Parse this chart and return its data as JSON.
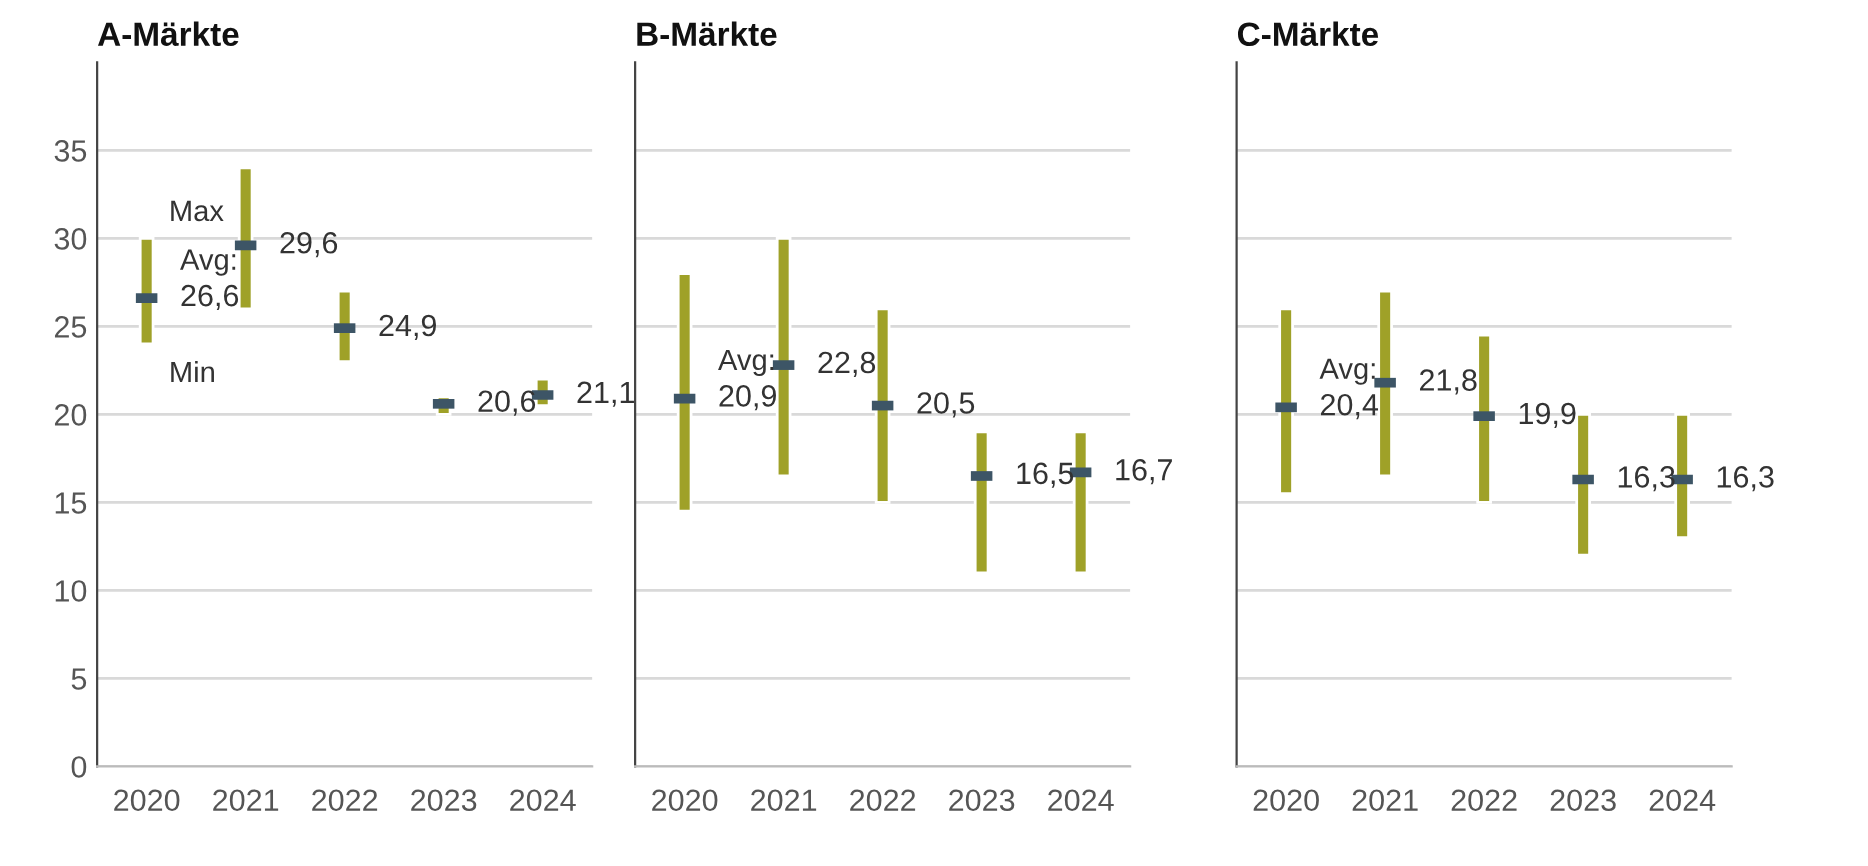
{
  "chart_data": [
    {
      "type": "bar",
      "title": "A-Märkte",
      "categories": [
        "2020",
        "2021",
        "2022",
        "2023",
        "2024"
      ],
      "series": [
        {
          "type": "bar",
          "color": "#9fa128",
          "base": [
            24,
            26,
            23,
            20,
            20.5
          ],
          "values": [
            6,
            8,
            4,
            1,
            1.5
          ]
        },
        {
          "type": "scatter",
          "color": "#3d5566",
          "values": [
            26.6,
            29.6,
            24.9,
            20.6,
            21.1
          ],
          "value_labels": [
            "26,6",
            "29,6",
            "24,9",
            "20,6",
            "21,1"
          ]
        }
      ],
      "ylim": [
        0,
        40
      ],
      "yticks": [
        0,
        5,
        10,
        15,
        20,
        25,
        30,
        35
      ],
      "grid": "y",
      "annotations": [
        {
          "text": "Max",
          "x": "2020",
          "y": 30
        },
        {
          "text": "Avg:",
          "x": "2020",
          "y": 26.6
        },
        {
          "text": "Min",
          "x": "2020",
          "y": 24
        }
      ]
    },
    {
      "type": "bar",
      "title": "B-Märkte",
      "categories": [
        "2020",
        "2021",
        "2022",
        "2023",
        "2024"
      ],
      "series": [
        {
          "type": "bar",
          "color": "#9fa128",
          "base": [
            14.5,
            16.5,
            15,
            11,
            11
          ],
          "values": [
            13.5,
            13.5,
            11,
            8,
            8
          ]
        },
        {
          "type": "scatter",
          "color": "#3d5566",
          "values": [
            20.9,
            22.8,
            20.5,
            16.5,
            16.7
          ],
          "value_labels": [
            "20,9",
            "22,8",
            "20,5",
            "16,5",
            "16,7"
          ]
        }
      ],
      "ylim": [
        0,
        40
      ],
      "yticks": [
        0,
        5,
        10,
        15,
        20,
        25,
        30,
        35
      ],
      "grid": "y",
      "tick_labels": "x",
      "annotations": [
        {
          "text": "Avg:",
          "x": "2020",
          "y": 20.9
        }
      ]
    },
    {
      "type": "bar",
      "title": "C-Märkte",
      "categories": [
        "2020",
        "2021",
        "2022",
        "2023",
        "2024"
      ],
      "series": [
        {
          "type": "bar",
          "color": "#9fa128",
          "base": [
            15.5,
            16.5,
            15,
            12,
            13
          ],
          "values": [
            10.5,
            10.5,
            9.5,
            8,
            7
          ]
        },
        {
          "type": "scatter",
          "color": "#3d5566",
          "values": [
            20.4,
            21.8,
            19.9,
            16.3,
            16.3
          ],
          "value_labels": [
            "20,4",
            "21,8",
            "19,9",
            "16,3",
            "16,3"
          ]
        }
      ],
      "ylim": [
        0,
        40
      ],
      "yticks": [
        0,
        5,
        10,
        15,
        20,
        25,
        30,
        35
      ],
      "grid": "y",
      "tick_labels": "x",
      "annotations": [
        {
          "text": "Avg:",
          "x": "2020",
          "y": 20.4
        }
      ]
    }
  ]
}
